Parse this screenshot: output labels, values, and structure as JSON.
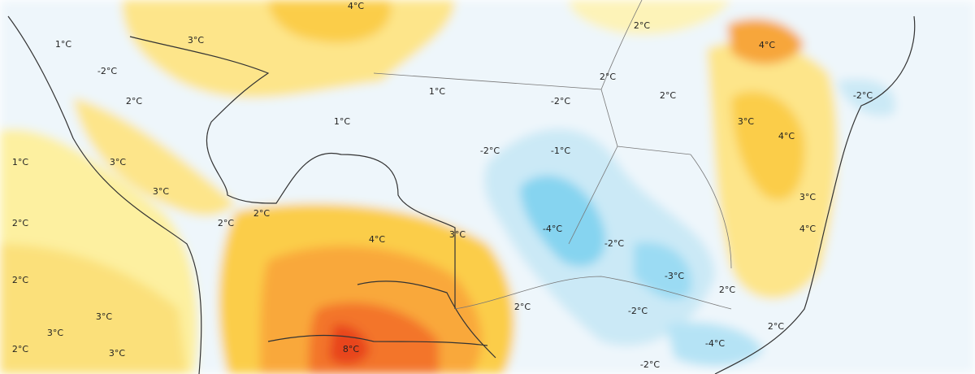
{
  "map": {
    "labels": [
      "4°C",
      "3°C",
      "1°C",
      "-2°C",
      "2°C",
      "1°C",
      "1°C",
      "-2°C",
      "2°C",
      "2°C",
      "2°C",
      "4°C",
      "-2°C",
      "3°C",
      "4°C",
      "-2°C",
      "-1°C",
      "1°C",
      "3°C",
      "3°C",
      "2°C",
      "2°C",
      "2°C",
      "4°C",
      "3°C",
      "-4°C",
      "-2°C",
      "3°C",
      "4°C",
      "-3°C",
      "2°C",
      "2°C",
      "3°C",
      "2°C",
      "-2°C",
      "3°C",
      "2°C",
      "2°C",
      "3°C",
      "8°C",
      "-4°C",
      "-2°C"
    ]
  }
}
